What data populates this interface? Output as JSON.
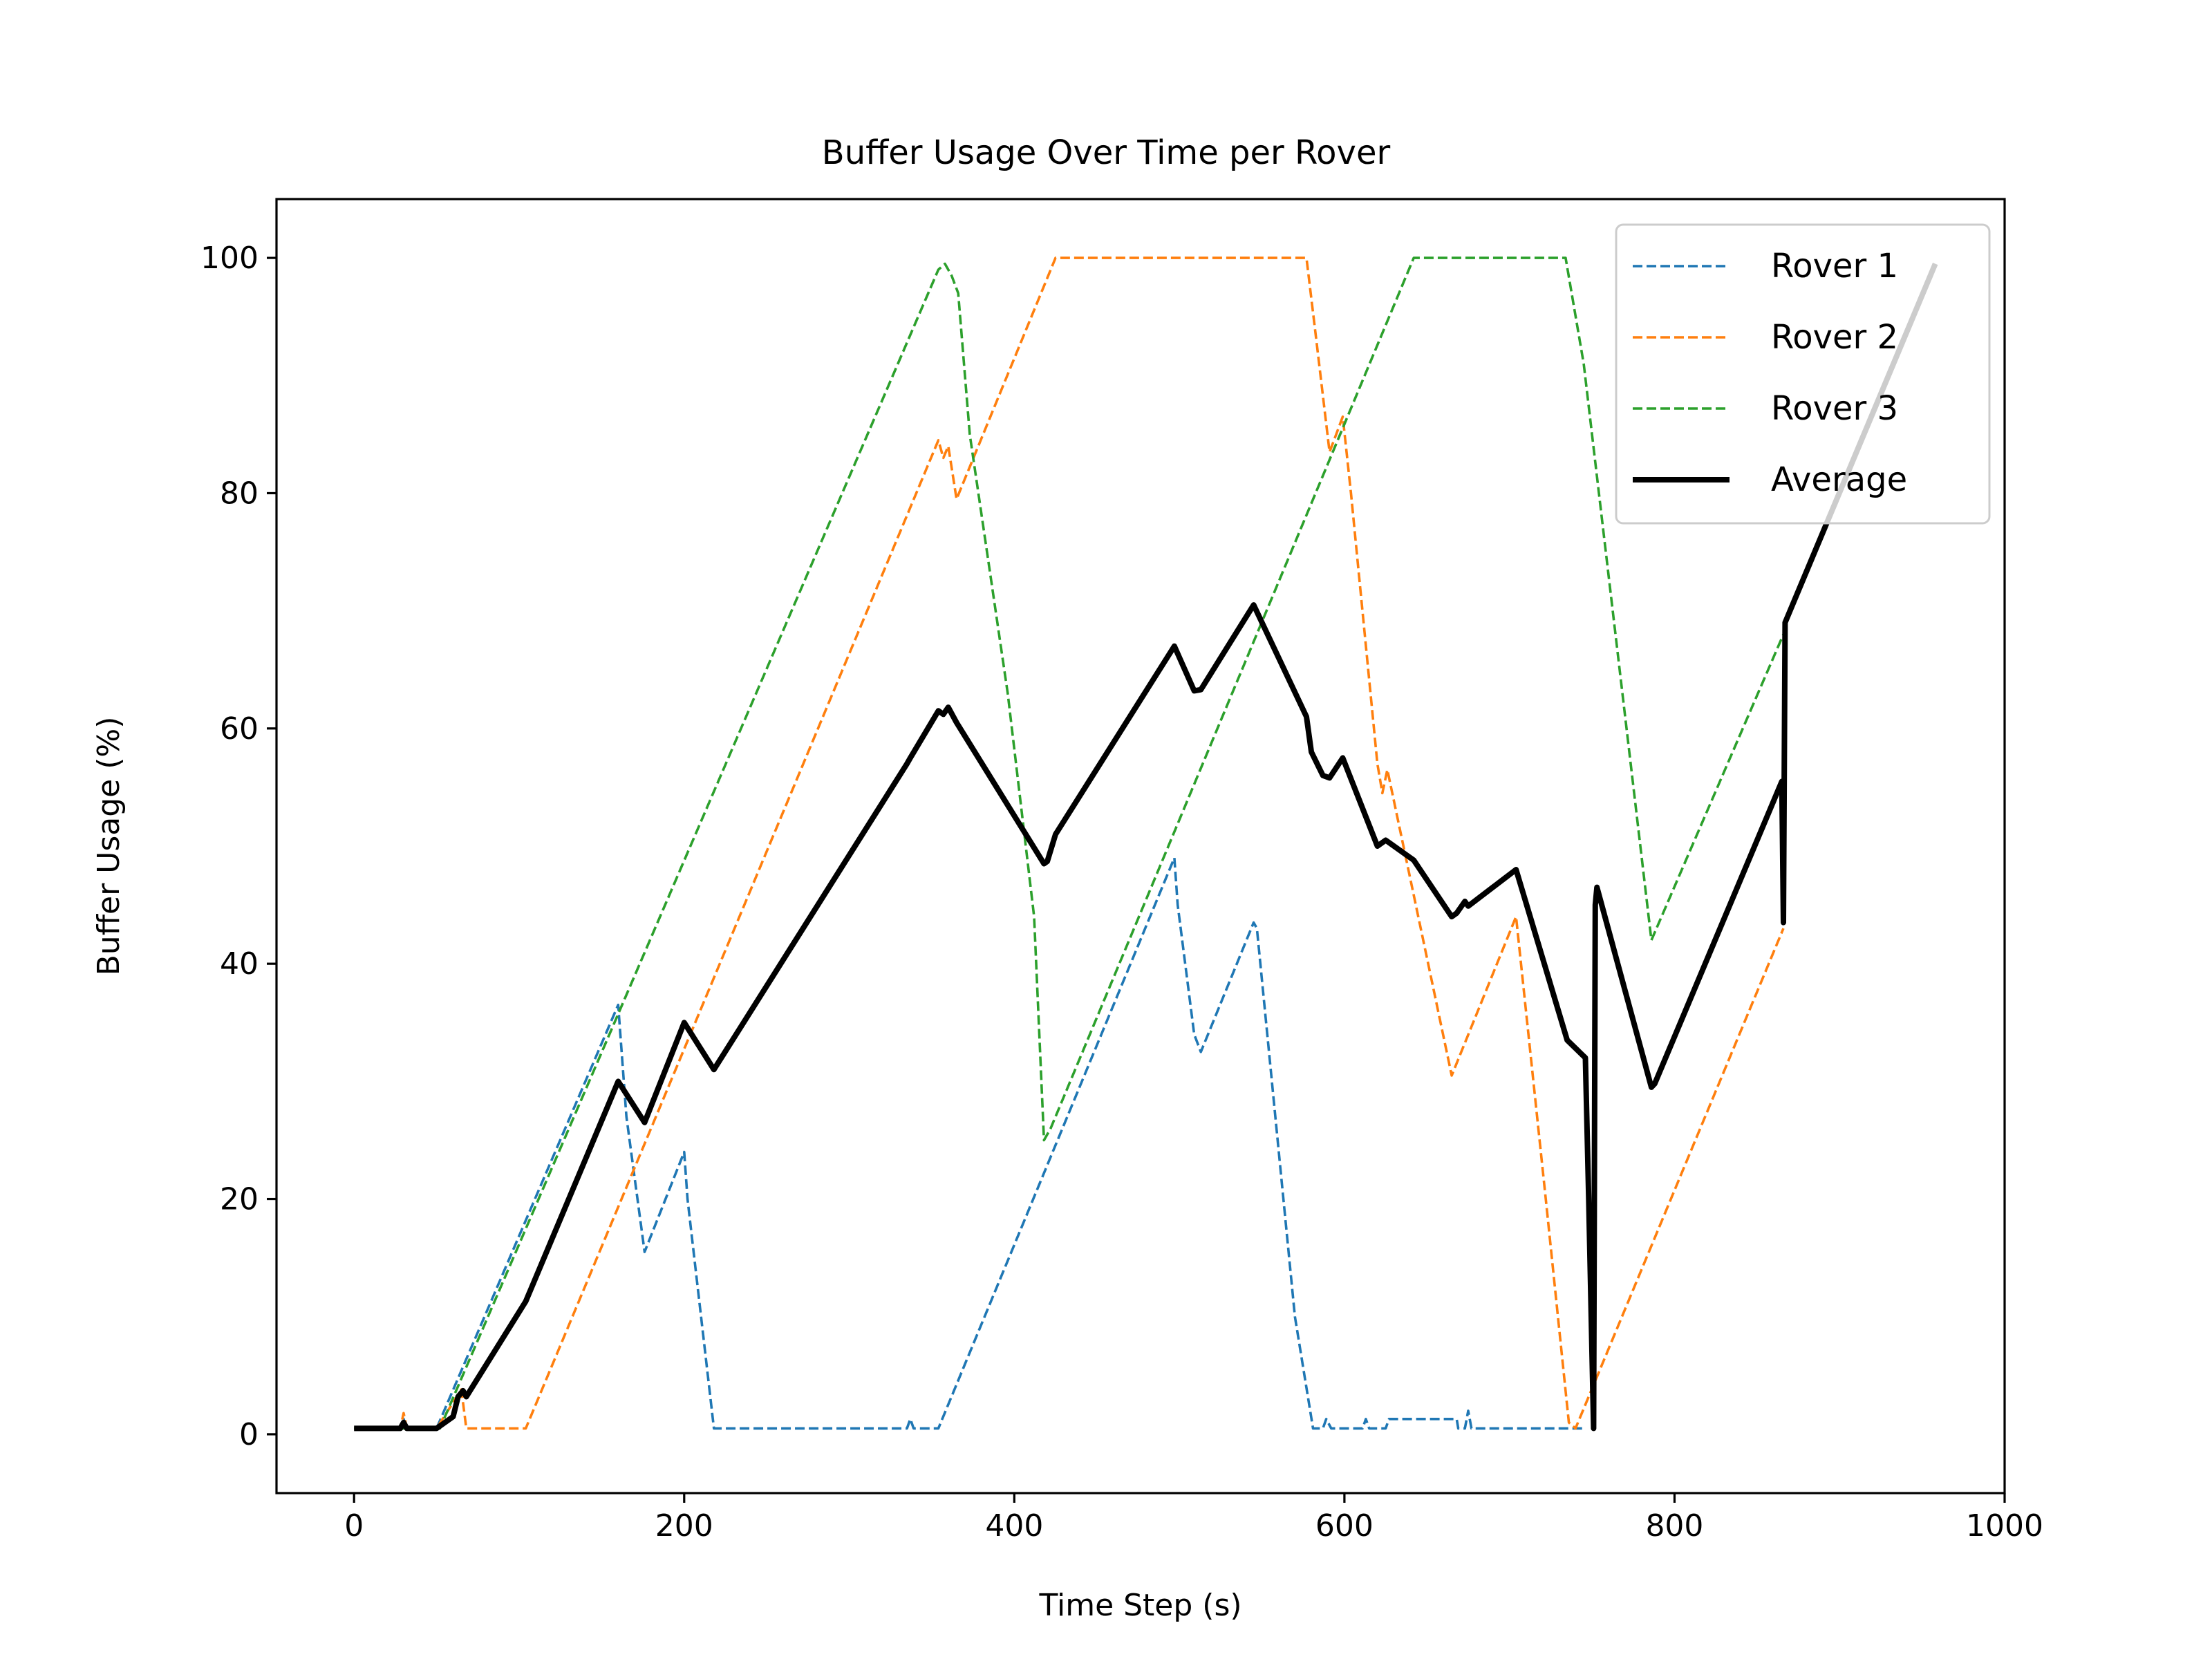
{
  "chart_data": {
    "type": "line",
    "title": "Buffer Usage Over Time per Rover",
    "xlabel": "Time Step (s)",
    "ylabel": "Buffer Usage (%)",
    "xlim": [
      -47,
      1000
    ],
    "ylim": [
      -5,
      105
    ],
    "xticks": [
      0,
      200,
      400,
      600,
      800,
      1000
    ],
    "yticks": [
      0,
      20,
      40,
      60,
      80,
      100
    ],
    "grid": false,
    "legend_position": "top-right",
    "series": [
      {
        "name": "Rover 1",
        "color": "#1f77b4",
        "style": "dashed",
        "width": "thin",
        "points": [
          [
            0,
            0.5
          ],
          [
            28,
            0.5
          ],
          [
            30,
            1.3
          ],
          [
            32,
            0.5
          ],
          [
            50,
            0.5
          ],
          [
            160,
            36.5
          ],
          [
            165,
            27
          ],
          [
            176,
            15.5
          ],
          [
            200,
            24
          ],
          [
            202,
            20
          ],
          [
            218,
            0.5
          ],
          [
            335,
            0.5
          ],
          [
            337,
            1.3
          ],
          [
            339,
            0.5
          ],
          [
            354,
            0.5
          ],
          [
            497,
            49
          ],
          [
            499,
            45
          ],
          [
            509,
            34
          ],
          [
            513,
            32.5
          ],
          [
            545,
            43.5
          ],
          [
            547,
            43
          ],
          [
            570,
            10
          ],
          [
            581,
            0.5
          ],
          [
            587,
            0.5
          ],
          [
            589,
            1.3
          ],
          [
            592,
            0.5
          ],
          [
            611,
            0.5
          ],
          [
            613,
            1.3
          ],
          [
            615,
            0.5
          ],
          [
            625,
            0.5
          ],
          [
            627,
            1.3
          ],
          [
            668,
            1.3
          ],
          [
            669,
            0.5
          ],
          [
            673,
            0.5
          ],
          [
            675,
            2
          ],
          [
            677,
            0.5
          ],
          [
            735,
            0.5
          ],
          [
            746,
            0.5
          ]
        ]
      },
      {
        "name": "Rover 2",
        "color": "#ff7f0e",
        "style": "dashed",
        "width": "thin",
        "points": [
          [
            0,
            0.5
          ],
          [
            28,
            0.5
          ],
          [
            30,
            1.8
          ],
          [
            32,
            0.5
          ],
          [
            50,
            0.5
          ],
          [
            65,
            3.8
          ],
          [
            68,
            0.5
          ],
          [
            104,
            0.5
          ],
          [
            354,
            84.5
          ],
          [
            357,
            83
          ],
          [
            360,
            84
          ],
          [
            365,
            79.5
          ],
          [
            425,
            100
          ],
          [
            577,
            100
          ],
          [
            583,
            93
          ],
          [
            591,
            83.5
          ],
          [
            595,
            85
          ],
          [
            599,
            86.5
          ],
          [
            604,
            80
          ],
          [
            620,
            57
          ],
          [
            623,
            54.5
          ],
          [
            626,
            56.5
          ],
          [
            665,
            30.5
          ],
          [
            704,
            44
          ],
          [
            722,
            20
          ],
          [
            736,
            1
          ],
          [
            740,
            0.5
          ],
          [
            866,
            43
          ]
        ]
      },
      {
        "name": "Rover 3",
        "color": "#2ca02c",
        "style": "dashed",
        "width": "thin",
        "points": [
          [
            0,
            0.5
          ],
          [
            52,
            0.5
          ],
          [
            354,
            99
          ],
          [
            358,
            99.5
          ],
          [
            362,
            98.5
          ],
          [
            366,
            97
          ],
          [
            373,
            85
          ],
          [
            396,
            63
          ],
          [
            412,
            44
          ],
          [
            418,
            25
          ],
          [
            422,
            26
          ],
          [
            642,
            100
          ],
          [
            734,
            100
          ],
          [
            745,
            91
          ],
          [
            786,
            42
          ],
          [
            866,
            68
          ]
        ]
      },
      {
        "name": "Average",
        "color": "#000000",
        "style": "solid",
        "width": "thick",
        "points": [
          [
            0,
            0.5
          ],
          [
            28,
            0.5
          ],
          [
            30,
            1
          ],
          [
            32,
            0.5
          ],
          [
            50,
            0.5
          ],
          [
            60,
            1.5
          ],
          [
            63,
            3.2
          ],
          [
            66,
            3.7
          ],
          [
            68,
            3.2
          ],
          [
            104,
            11.3
          ],
          [
            160,
            30
          ],
          [
            176,
            26.5
          ],
          [
            200,
            35
          ],
          [
            218,
            31
          ],
          [
            335,
            57
          ],
          [
            337,
            57.5
          ],
          [
            354,
            61.5
          ],
          [
            357,
            61.2
          ],
          [
            360,
            61.8
          ],
          [
            365,
            60.5
          ],
          [
            418,
            48.5
          ],
          [
            420,
            48.7
          ],
          [
            425,
            51
          ],
          [
            497,
            67
          ],
          [
            509,
            63.2
          ],
          [
            513,
            63.3
          ],
          [
            545,
            70.5
          ],
          [
            577,
            61
          ],
          [
            580,
            58
          ],
          [
            587,
            56
          ],
          [
            591,
            55.8
          ],
          [
            599,
            57.5
          ],
          [
            620,
            50
          ],
          [
            625,
            50.5
          ],
          [
            627,
            50.3
          ],
          [
            642,
            48.8
          ],
          [
            665,
            44
          ],
          [
            668,
            44.3
          ],
          [
            673,
            45.3
          ],
          [
            675,
            44.9
          ],
          [
            704,
            48
          ],
          [
            735,
            33.5
          ],
          [
            746,
            32
          ],
          [
            748,
            20
          ],
          [
            751,
            0.5
          ],
          [
            752,
            45
          ],
          [
            753,
            46.5
          ],
          [
            786,
            29.5
          ],
          [
            788,
            29.8
          ],
          [
            865,
            55.5
          ],
          [
            866,
            43.5
          ],
          [
            867,
            69
          ],
          [
            958,
            99.5
          ]
        ]
      }
    ]
  }
}
